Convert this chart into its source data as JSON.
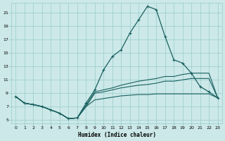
{
  "xlabel": "Humidex (Indice chaleur)",
  "bg_color": "#cce8e8",
  "grid_color": "#99cccc",
  "line_color": "#1a6060",
  "xlim": [
    -0.5,
    23.5
  ],
  "ylim": [
    4.5,
    22.5
  ],
  "xticks": [
    0,
    1,
    2,
    3,
    4,
    5,
    6,
    7,
    8,
    9,
    10,
    11,
    12,
    13,
    14,
    15,
    16,
    17,
    18,
    19,
    20,
    21,
    22,
    23
  ],
  "yticks": [
    5,
    7,
    9,
    11,
    13,
    15,
    17,
    19,
    21
  ],
  "curve1_x": [
    0,
    1,
    2,
    3,
    4,
    5,
    6,
    7,
    8,
    9,
    10,
    11,
    12,
    13,
    14,
    15,
    16,
    17,
    18,
    19,
    20,
    21,
    22,
    23
  ],
  "curve1_y": [
    8.5,
    7.5,
    7.3,
    7.0,
    6.5,
    6.0,
    5.2,
    5.3,
    7.5,
    9.5,
    12.5,
    14.5,
    15.5,
    18.0,
    20.0,
    22.0,
    21.5,
    17.5,
    14.0,
    13.5,
    12.0,
    10.0,
    9.2,
    8.3
  ],
  "curve2_x": [
    0,
    1,
    2,
    3,
    4,
    5,
    6,
    7,
    8,
    9,
    10,
    11,
    12,
    13,
    14,
    15,
    16,
    17,
    18,
    19,
    20,
    21,
    22,
    23
  ],
  "curve2_y": [
    8.5,
    7.5,
    7.3,
    7.0,
    6.5,
    6.0,
    5.2,
    5.3,
    7.2,
    9.2,
    9.5,
    9.8,
    10.2,
    10.5,
    10.8,
    11.0,
    11.2,
    11.5,
    11.5,
    11.8,
    12.0,
    12.0,
    12.0,
    8.3
  ],
  "curve3_x": [
    0,
    1,
    2,
    3,
    4,
    5,
    6,
    7,
    8,
    9,
    10,
    11,
    12,
    13,
    14,
    15,
    16,
    17,
    18,
    19,
    20,
    21,
    22,
    23
  ],
  "curve3_y": [
    8.5,
    7.5,
    7.3,
    7.0,
    6.5,
    6.0,
    5.2,
    5.3,
    7.0,
    9.0,
    9.2,
    9.5,
    9.8,
    10.0,
    10.2,
    10.3,
    10.5,
    10.8,
    10.8,
    11.0,
    11.2,
    11.2,
    11.2,
    8.3
  ],
  "curve4_x": [
    0,
    1,
    2,
    3,
    4,
    5,
    6,
    7,
    8,
    9,
    10,
    11,
    12,
    13,
    14,
    15,
    16,
    17,
    18,
    19,
    20,
    21,
    22,
    23
  ],
  "curve4_y": [
    8.5,
    7.5,
    7.3,
    7.0,
    6.5,
    6.0,
    5.2,
    5.3,
    7.0,
    8.0,
    8.2,
    8.4,
    8.6,
    8.7,
    8.8,
    8.8,
    8.9,
    8.9,
    8.9,
    8.9,
    8.9,
    8.9,
    8.9,
    8.3
  ]
}
